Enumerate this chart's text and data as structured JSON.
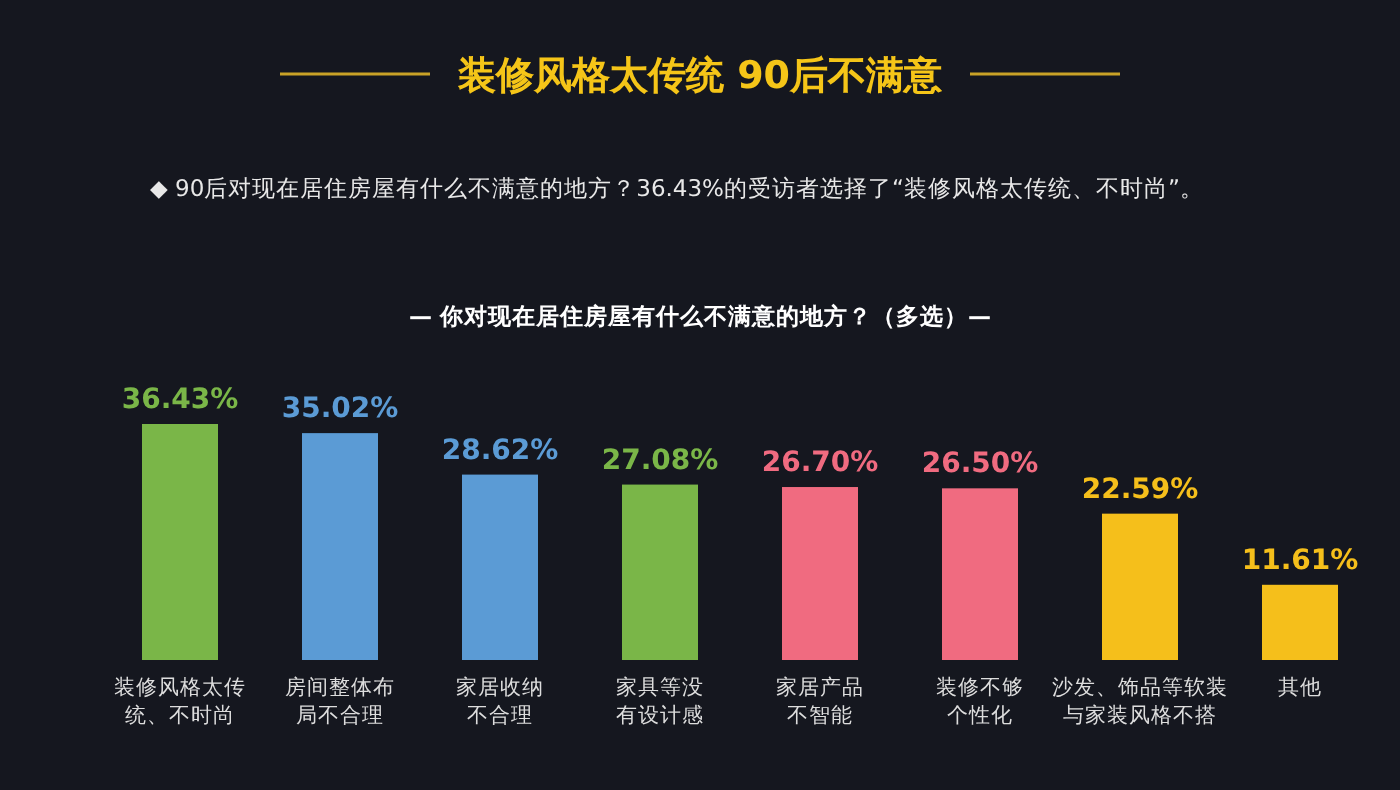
{
  "chart_data": {
    "type": "bar",
    "title": "装修风格太传统  90后不满意",
    "subtitle": "◆ 90后对现在居住房屋有什么不满意的地方？36.43%的受访者选择了“装修风格太传统、不时尚”。",
    "annotations": [
      "— 你对现在居住房屋有什么不满意的地方？（多选）—"
    ],
    "categories": [
      "装修风格太传统、不时尚",
      "房间整体布局不合理",
      "家居收纳不合理",
      "家具等没有设计感",
      "家居产品不智能",
      "装修不够个性化",
      "沙发、饰品等软装与家装风格不搭",
      "其他"
    ],
    "values": [
      36.43,
      35.02,
      28.62,
      27.08,
      26.7,
      26.5,
      22.59,
      11.61
    ],
    "value_labels": [
      "36.43%",
      "35.02%",
      "28.62%",
      "27.08%",
      "26.70%",
      "26.50%",
      "22.59%",
      "11.61%"
    ],
    "colors": [
      "#7ab648",
      "#5b9bd5",
      "#5b9bd5",
      "#7ab648",
      "#f06b80",
      "#f06b80",
      "#f5bf1b",
      "#f5bf1b"
    ]
  }
}
